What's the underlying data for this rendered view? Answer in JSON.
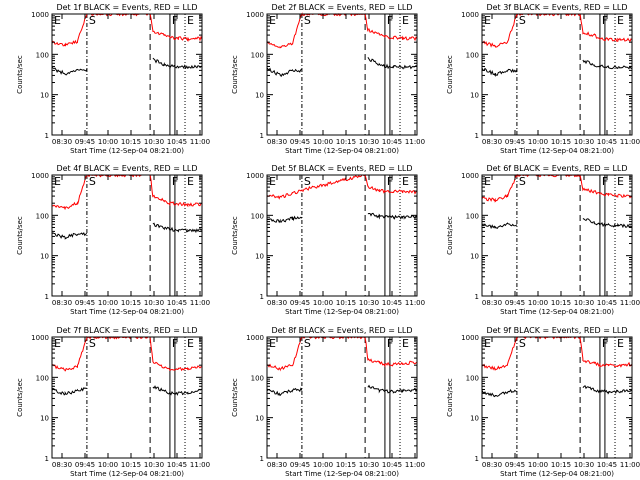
{
  "figure": {
    "x_tick_labels": [
      "08:30",
      "09:45",
      "10:00",
      "10:15",
      "10:30",
      "10:45",
      "11:00"
    ],
    "y_tick_labels": [
      "1000",
      "100",
      "10",
      "1"
    ]
  },
  "chart_data": [
    {
      "type": "line",
      "title": "Det 1f BLACK = Events, RED = LLD",
      "xlabel": "Start Time (12-Sep-04 08:21:00)",
      "ylabel": "Counts/sec",
      "y_scale": "log",
      "ylim": [
        1,
        1000
      ],
      "xlim": [
        "08:21",
        "11:00"
      ],
      "grid": false,
      "legend": "none",
      "markers": [
        {
          "label": "E",
          "time": "08:21"
        },
        {
          "label": "S",
          "time": "08:58"
        },
        {
          "label": "F",
          "time": "10:26"
        },
        {
          "label": "E",
          "time": "10:42"
        }
      ],
      "series": [
        {
          "name": "RED = LLD",
          "color": "#ff0000",
          "x": [
            "08:21",
            "08:35",
            "08:48",
            "08:58",
            "10:05",
            "10:08",
            "10:20",
            "10:26",
            "10:35",
            "10:45",
            "11:00"
          ],
          "y": [
            200,
            170,
            210,
            1000,
            1000,
            380,
            300,
            260,
            250,
            240,
            250
          ]
        },
        {
          "name": "BLACK = Events",
          "color": "#000000",
          "x": [
            "08:21",
            "08:35",
            "08:48",
            "08:58",
            "10:05",
            "10:08",
            "10:20",
            "10:26",
            "10:35",
            "10:45",
            "11:00"
          ],
          "y": [
            45,
            33,
            40,
            40,
            null,
            75,
            55,
            50,
            50,
            48,
            50
          ]
        }
      ]
    },
    {
      "type": "line",
      "title": "Det 2f BLACK = Events, RED = LLD",
      "xlabel": "Start Time (12-Sep-04 08:21:00)",
      "ylabel": "Counts/sec",
      "y_scale": "log",
      "ylim": [
        1,
        1000
      ],
      "xlim": [
        "08:21",
        "11:00"
      ],
      "grid": false,
      "legend": "none",
      "markers": [
        {
          "label": "E",
          "time": "08:21"
        },
        {
          "label": "S",
          "time": "08:58"
        },
        {
          "label": "F",
          "time": "10:26"
        },
        {
          "label": "E",
          "time": "10:42"
        }
      ],
      "series": [
        {
          "name": "RED = LLD",
          "color": "#ff0000",
          "x": [
            "08:21",
            "08:35",
            "08:48",
            "08:58",
            "10:05",
            "10:08",
            "10:20",
            "10:26",
            "10:35",
            "10:45",
            "11:00"
          ],
          "y": [
            200,
            150,
            190,
            1000,
            1000,
            400,
            320,
            270,
            260,
            250,
            250
          ]
        },
        {
          "name": "BLACK = Events",
          "color": "#000000",
          "x": [
            "08:21",
            "08:35",
            "08:48",
            "08:58",
            "10:05",
            "10:08",
            "10:20",
            "10:26",
            "10:35",
            "10:45",
            "11:00"
          ],
          "y": [
            45,
            30,
            40,
            40,
            null,
            80,
            55,
            50,
            50,
            48,
            50
          ]
        }
      ]
    },
    {
      "type": "line",
      "title": "Det 3f BLACK = Events, RED = LLD",
      "xlabel": "Start Time (12-Sep-04 08:21:00)",
      "ylabel": "Counts/sec",
      "y_scale": "log",
      "ylim": [
        1,
        1000
      ],
      "xlim": [
        "08:21",
        "11:00"
      ],
      "grid": false,
      "legend": "none",
      "markers": [
        {
          "label": "E",
          "time": "08:21"
        },
        {
          "label": "S",
          "time": "08:58"
        },
        {
          "label": "F",
          "time": "10:26"
        },
        {
          "label": "E",
          "time": "10:42"
        }
      ],
      "series": [
        {
          "name": "RED = LLD",
          "color": "#ff0000",
          "x": [
            "08:21",
            "08:35",
            "08:48",
            "08:58",
            "10:05",
            "10:08",
            "10:20",
            "10:26",
            "10:35",
            "10:45",
            "11:00"
          ],
          "y": [
            200,
            160,
            200,
            1000,
            1000,
            350,
            290,
            250,
            230,
            230,
            230
          ]
        },
        {
          "name": "BLACK = Events",
          "color": "#000000",
          "x": [
            "08:21",
            "08:35",
            "08:48",
            "08:58",
            "10:05",
            "10:08",
            "10:20",
            "10:26",
            "10:35",
            "10:45",
            "11:00"
          ],
          "y": [
            45,
            32,
            40,
            40,
            null,
            70,
            55,
            50,
            48,
            47,
            48
          ]
        }
      ]
    },
    {
      "type": "line",
      "title": "Det 4f BLACK = Events, RED = LLD",
      "xlabel": "Start Time (12-Sep-04 08:21:00)",
      "ylabel": "Counts/sec",
      "y_scale": "log",
      "ylim": [
        1,
        1000
      ],
      "xlim": [
        "08:21",
        "11:00"
      ],
      "grid": false,
      "legend": "none",
      "markers": [
        {
          "label": "E",
          "time": "08:21"
        },
        {
          "label": "S",
          "time": "08:58"
        },
        {
          "label": "F",
          "time": "10:26"
        },
        {
          "label": "E",
          "time": "10:42"
        }
      ],
      "series": [
        {
          "name": "RED = LLD",
          "color": "#ff0000",
          "x": [
            "08:21",
            "08:35",
            "08:48",
            "08:58",
            "10:05",
            "10:08",
            "10:20",
            "10:26",
            "10:35",
            "10:45",
            "11:00"
          ],
          "y": [
            180,
            150,
            200,
            1000,
            1000,
            300,
            230,
            200,
            190,
            185,
            190
          ]
        },
        {
          "name": "BLACK = Events",
          "color": "#000000",
          "x": [
            "08:21",
            "08:35",
            "08:48",
            "08:58",
            "10:05",
            "10:08",
            "10:20",
            "10:26",
            "10:35",
            "10:45",
            "11:00"
          ],
          "y": [
            35,
            28,
            35,
            35,
            null,
            60,
            48,
            45,
            43,
            42,
            43
          ]
        }
      ]
    },
    {
      "type": "line",
      "title": "Det 5f BLACK = Events, RED = LLD",
      "xlabel": "Start Time (12-Sep-04 08:21:00)",
      "ylabel": "Counts/sec",
      "y_scale": "log",
      "ylim": [
        1,
        1000
      ],
      "xlim": [
        "08:21",
        "11:00"
      ],
      "grid": false,
      "legend": "none",
      "markers": [
        {
          "label": "E",
          "time": "08:21"
        },
        {
          "label": "S",
          "time": "08:58"
        },
        {
          "label": "F",
          "time": "10:26"
        },
        {
          "label": "E",
          "time": "10:42"
        }
      ],
      "series": [
        {
          "name": "RED = LLD",
          "color": "#ff0000",
          "x": [
            "08:21",
            "08:35",
            "08:48",
            "08:58",
            "10:05",
            "10:08",
            "10:20",
            "10:26",
            "10:35",
            "10:45",
            "11:00"
          ],
          "y": [
            320,
            280,
            350,
            420,
            1000,
            500,
            420,
            400,
            390,
            390,
            380
          ]
        },
        {
          "name": "BLACK = Events",
          "color": "#000000",
          "x": [
            "08:21",
            "08:35",
            "08:48",
            "08:58",
            "10:05",
            "10:08",
            "10:20",
            "10:26",
            "10:35",
            "10:45",
            "11:00"
          ],
          "y": [
            80,
            70,
            85,
            85,
            null,
            110,
            95,
            90,
            90,
            88,
            90
          ]
        }
      ]
    },
    {
      "type": "line",
      "title": "Det 6f BLACK = Events, RED = LLD",
      "xlabel": "Start Time (12-Sep-04 08:21:00)",
      "ylabel": "Counts/sec",
      "y_scale": "log",
      "ylim": [
        1,
        1000
      ],
      "xlim": [
        "08:21",
        "11:00"
      ],
      "grid": false,
      "legend": "none",
      "markers": [
        {
          "label": "E",
          "time": "08:21"
        },
        {
          "label": "S",
          "time": "08:58"
        },
        {
          "label": "F",
          "time": "10:26"
        },
        {
          "label": "E",
          "time": "10:42"
        }
      ],
      "series": [
        {
          "name": "RED = LLD",
          "color": "#ff0000",
          "x": [
            "08:21",
            "08:35",
            "08:48",
            "08:58",
            "10:05",
            "10:08",
            "10:20",
            "10:26",
            "10:35",
            "10:45",
            "11:00"
          ],
          "y": [
            260,
            240,
            300,
            1000,
            1000,
            450,
            380,
            340,
            320,
            310,
            300
          ]
        },
        {
          "name": "BLACK = Events",
          "color": "#000000",
          "x": [
            "08:21",
            "08:35",
            "08:48",
            "08:58",
            "10:05",
            "10:08",
            "10:20",
            "10:26",
            "10:35",
            "10:45",
            "11:00"
          ],
          "y": [
            60,
            50,
            60,
            60,
            null,
            85,
            65,
            60,
            58,
            55,
            55
          ]
        }
      ]
    },
    {
      "type": "line",
      "title": "Det 7f BLACK = Events, RED = LLD",
      "xlabel": "Start Time (12-Sep-04 08:21:00)",
      "ylabel": "Counts/sec",
      "y_scale": "log",
      "ylim": [
        1,
        1000
      ],
      "xlim": [
        "08:21",
        "11:00"
      ],
      "grid": false,
      "legend": "none",
      "markers": [
        {
          "label": "E",
          "time": "08:21"
        },
        {
          "label": "S",
          "time": "08:58"
        },
        {
          "label": "F",
          "time": "10:26"
        },
        {
          "label": "E",
          "time": "10:42"
        }
      ],
      "series": [
        {
          "name": "RED = LLD",
          "color": "#ff0000",
          "x": [
            "08:21",
            "08:35",
            "08:48",
            "08:58",
            "10:05",
            "10:08",
            "10:20",
            "10:26",
            "10:35",
            "10:45",
            "11:00"
          ],
          "y": [
            200,
            150,
            190,
            1000,
            1000,
            240,
            180,
            160,
            160,
            170,
            190
          ]
        },
        {
          "name": "BLACK = Events",
          "color": "#000000",
          "x": [
            "08:21",
            "08:35",
            "08:48",
            "08:58",
            "10:05",
            "10:08",
            "10:20",
            "10:26",
            "10:35",
            "10:45",
            "11:00"
          ],
          "y": [
            50,
            38,
            48,
            55,
            null,
            60,
            45,
            40,
            40,
            42,
            48
          ]
        }
      ]
    },
    {
      "type": "line",
      "title": "Det 8f BLACK = Events, RED = LLD",
      "xlabel": "Start Time (12-Sep-04 08:21:00)",
      "ylabel": "Counts/sec",
      "y_scale": "log",
      "ylim": [
        1,
        1000
      ],
      "xlim": [
        "08:21",
        "11:00"
      ],
      "grid": false,
      "legend": "none",
      "markers": [
        {
          "label": "E",
          "time": "08:21"
        },
        {
          "label": "S",
          "time": "08:58"
        },
        {
          "label": "F",
          "time": "10:26"
        },
        {
          "label": "E",
          "time": "10:42"
        }
      ],
      "series": [
        {
          "name": "RED = LLD",
          "color": "#ff0000",
          "x": [
            "08:21",
            "08:35",
            "08:48",
            "08:58",
            "10:05",
            "10:08",
            "10:20",
            "10:26",
            "10:35",
            "10:45",
            "11:00"
          ],
          "y": [
            200,
            160,
            200,
            1000,
            1000,
            270,
            230,
            210,
            210,
            220,
            240
          ]
        },
        {
          "name": "BLACK = Events",
          "color": "#000000",
          "x": [
            "08:21",
            "08:35",
            "08:48",
            "08:58",
            "10:05",
            "10:08",
            "10:20",
            "10:26",
            "10:35",
            "10:45",
            "11:00"
          ],
          "y": [
            50,
            38,
            48,
            50,
            null,
            60,
            48,
            45,
            45,
            47,
            50
          ]
        }
      ]
    },
    {
      "type": "line",
      "title": "Det 9f BLACK = Events, RED = LLD",
      "xlabel": "Start Time (12-Sep-04 08:21:00)",
      "ylabel": "Counts/sec",
      "y_scale": "log",
      "ylim": [
        1,
        1000
      ],
      "xlim": [
        "08:21",
        "11:00"
      ],
      "grid": false,
      "legend": "none",
      "markers": [
        {
          "label": "E",
          "time": "08:21"
        },
        {
          "label": "S",
          "time": "08:58"
        },
        {
          "label": "F",
          "time": "10:26"
        },
        {
          "label": "E",
          "time": "10:42"
        }
      ],
      "series": [
        {
          "name": "RED = LLD",
          "color": "#ff0000",
          "x": [
            "08:21",
            "08:35",
            "08:48",
            "08:58",
            "10:05",
            "10:08",
            "10:20",
            "10:26",
            "10:35",
            "10:45",
            "11:00"
          ],
          "y": [
            200,
            160,
            200,
            1000,
            1000,
            270,
            220,
            200,
            200,
            200,
            210
          ]
        },
        {
          "name": "BLACK = Events",
          "color": "#000000",
          "x": [
            "08:21",
            "08:35",
            "08:48",
            "08:58",
            "10:05",
            "10:08",
            "10:20",
            "10:26",
            "10:35",
            "10:45",
            "11:00"
          ],
          "y": [
            45,
            35,
            45,
            48,
            null,
            60,
            48,
            45,
            43,
            45,
            48
          ]
        }
      ]
    }
  ]
}
